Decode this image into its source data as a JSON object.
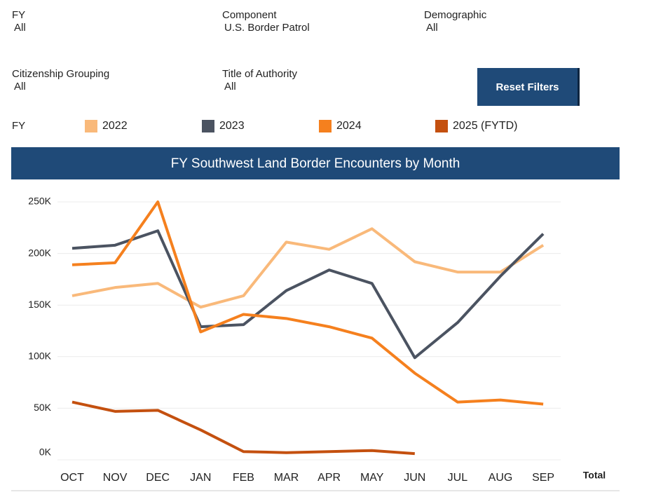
{
  "filters": [
    {
      "label": "FY",
      "value": "All"
    },
    {
      "label": "Component",
      "value": "U.S. Border Patrol"
    },
    {
      "label": "Demographic",
      "value": "All"
    },
    {
      "label": "Citizenship Grouping",
      "value": "All"
    },
    {
      "label": "Title of Authority",
      "value": "All"
    }
  ],
  "reset_button": "Reset Filters",
  "legend_title": "FY",
  "total_label": "Total",
  "chart_data": {
    "type": "line",
    "title": "FY Southwest Land Border Encounters by Month",
    "categories": [
      "OCT",
      "NOV",
      "DEC",
      "JAN",
      "FEB",
      "MAR",
      "APR",
      "MAY",
      "JUN",
      "JUL",
      "AUG",
      "SEP"
    ],
    "ylim": [
      0,
      250000
    ],
    "yticks": [
      {
        "value": 0,
        "label": "0K"
      },
      {
        "value": 50000,
        "label": "50K"
      },
      {
        "value": 100000,
        "label": "100K"
      },
      {
        "value": 150000,
        "label": "150K"
      },
      {
        "value": 200000,
        "label": "200K"
      },
      {
        "value": 250000,
        "label": "250K"
      }
    ],
    "grid": true,
    "series": [
      {
        "name": "2022",
        "color": "#f9b97a",
        "values": [
          159000,
          167000,
          171000,
          148000,
          159000,
          211000,
          204000,
          224000,
          192000,
          182000,
          182000,
          208000
        ]
      },
      {
        "name": "2023",
        "color": "#4b5361",
        "values": [
          205000,
          208000,
          222000,
          129000,
          131000,
          164000,
          184000,
          171000,
          99000,
          133000,
          178000,
          219000
        ]
      },
      {
        "name": "2024",
        "color": "#f5801e",
        "values": [
          189000,
          191000,
          250000,
          124000,
          141000,
          137000,
          129000,
          118000,
          84000,
          56000,
          58000,
          54000
        ]
      },
      {
        "name": "2025 (FYTD)",
        "color": "#c4500f",
        "values": [
          56000,
          47000,
          48000,
          29000,
          8000,
          7000,
          8000,
          9000,
          6000,
          null,
          null,
          null
        ]
      }
    ]
  }
}
